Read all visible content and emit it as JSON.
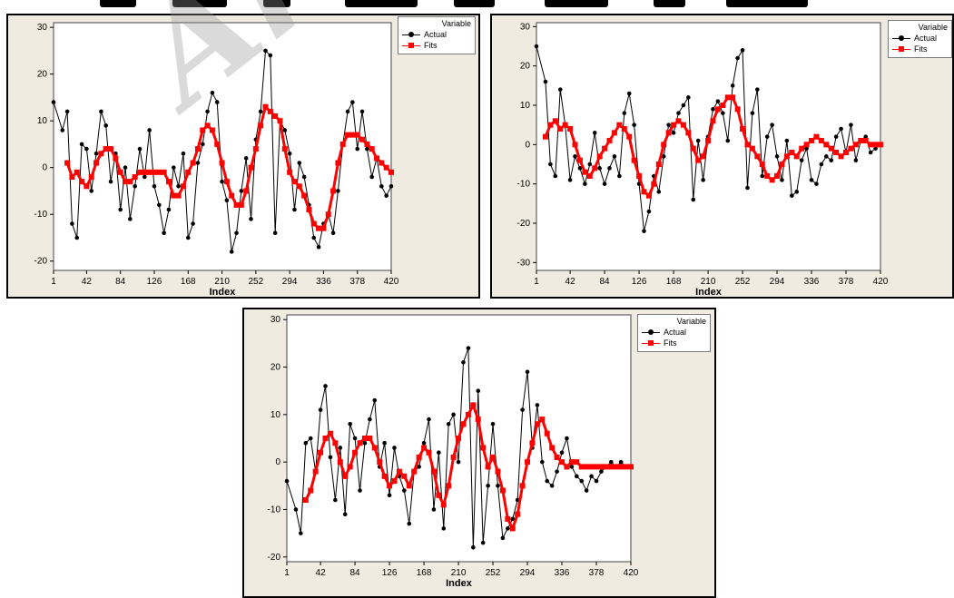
{
  "colors": {
    "actual": "#000000",
    "fits": "#ff0000",
    "panel_bg": "#efebe1"
  },
  "legend": {
    "title": "Variable",
    "actual": "Actual",
    "fits": "Fits"
  },
  "watermark": "Archi",
  "chart_data": [
    {
      "type": "line",
      "xlabel": "Index",
      "xticks": [
        1,
        42,
        84,
        126,
        168,
        210,
        252,
        294,
        336,
        378,
        420
      ],
      "xlim": [
        1,
        420
      ],
      "yticks": [
        -20,
        -10,
        0,
        10,
        20,
        30
      ],
      "ylim": [
        -22,
        31
      ],
      "legend_position": "top-right",
      "series": [
        {
          "name": "Actual",
          "marker": "circle",
          "x": [
            1,
            12,
            18,
            24,
            30,
            36,
            42,
            48,
            54,
            60,
            66,
            72,
            78,
            84,
            90,
            96,
            102,
            108,
            114,
            120,
            126,
            132,
            138,
            144,
            150,
            156,
            162,
            168,
            174,
            180,
            186,
            192,
            198,
            204,
            210,
            216,
            222,
            228,
            234,
            240,
            246,
            252,
            258,
            264,
            270,
            276,
            282,
            288,
            294,
            300,
            306,
            312,
            318,
            324,
            330,
            336,
            342,
            348,
            354,
            360,
            366,
            372,
            378,
            384,
            390,
            396,
            402,
            408,
            414,
            420
          ],
          "y": [
            14,
            8,
            12,
            -12,
            -15,
            5,
            4,
            -5,
            3,
            12,
            9,
            -3,
            3,
            -9,
            0,
            -11,
            -4,
            4,
            -2,
            8,
            -4,
            -8,
            -14,
            -9,
            0,
            -4,
            3,
            -15,
            -12,
            1,
            5,
            12,
            16,
            14,
            -3,
            -7,
            -18,
            -14,
            -5,
            2,
            -11,
            6,
            12,
            25,
            24,
            -14,
            10,
            8,
            3,
            -9,
            1,
            -2,
            -8,
            -15,
            -17,
            -12,
            -10,
            -14,
            -5,
            5,
            12,
            14,
            4,
            12,
            4,
            -2,
            2,
            -4,
            -6,
            -4
          ]
        },
        {
          "name": "Fits",
          "marker": "square",
          "x": [
            18,
            24,
            30,
            36,
            42,
            48,
            54,
            60,
            66,
            72,
            78,
            84,
            90,
            96,
            102,
            108,
            114,
            120,
            126,
            132,
            138,
            144,
            150,
            156,
            162,
            168,
            174,
            180,
            186,
            192,
            198,
            204,
            210,
            216,
            222,
            228,
            234,
            240,
            246,
            252,
            258,
            264,
            270,
            276,
            282,
            288,
            294,
            300,
            306,
            312,
            318,
            324,
            330,
            336,
            342,
            348,
            354,
            360,
            366,
            372,
            378,
            384,
            390,
            396,
            402,
            408,
            414,
            420
          ],
          "y": [
            1,
            -2,
            -1,
            -3,
            -4,
            -2,
            1,
            3,
            4,
            4,
            2,
            -1,
            -3,
            -3,
            -2,
            -1,
            -1,
            -1,
            -1,
            -1,
            -1,
            -3,
            -6,
            -6,
            -4,
            -1,
            1,
            4,
            8,
            9,
            8,
            5,
            1,
            -3,
            -6,
            -8,
            -8,
            -5,
            0,
            4,
            9,
            13,
            12,
            11,
            10,
            4,
            -1,
            -3,
            -4,
            -6,
            -9,
            -12,
            -13,
            -13,
            -10,
            -5,
            1,
            5,
            7,
            7,
            7,
            6,
            5,
            4,
            2,
            1,
            0,
            -1
          ]
        }
      ]
    },
    {
      "type": "line",
      "xlabel": "Index",
      "xticks": [
        1,
        42,
        84,
        126,
        168,
        210,
        252,
        294,
        336,
        378,
        420
      ],
      "xlim": [
        1,
        420
      ],
      "yticks": [
        -30,
        -20,
        -10,
        0,
        10,
        20,
        30
      ],
      "ylim": [
        -32,
        31
      ],
      "legend_position": "top-right",
      "series": [
        {
          "name": "Actual",
          "marker": "circle",
          "x": [
            1,
            12,
            18,
            24,
            30,
            36,
            42,
            48,
            54,
            60,
            66,
            72,
            78,
            84,
            90,
            96,
            102,
            108,
            114,
            120,
            126,
            132,
            138,
            144,
            150,
            156,
            162,
            168,
            174,
            180,
            186,
            192,
            198,
            204,
            210,
            216,
            222,
            228,
            234,
            240,
            246,
            252,
            258,
            264,
            270,
            276,
            282,
            288,
            294,
            300,
            306,
            312,
            318,
            324,
            330,
            336,
            342,
            348,
            354,
            360,
            366,
            372,
            378,
            384,
            390,
            396,
            402,
            408,
            414,
            420
          ],
          "y": [
            25,
            16,
            -5,
            -8,
            14,
            5,
            -9,
            -3,
            -6,
            -10,
            -5,
            3,
            -6,
            -10,
            -6,
            -3,
            -8,
            8,
            13,
            5,
            -10,
            -22,
            -17,
            -8,
            -12,
            -3,
            5,
            3,
            8,
            10,
            12,
            -14,
            1,
            -9,
            2,
            9,
            11,
            8,
            1,
            15,
            22,
            24,
            -11,
            8,
            14,
            -8,
            2,
            5,
            -3,
            -9,
            1,
            -13,
            -12,
            -4,
            -1,
            -9,
            -10,
            -5,
            -3,
            -4,
            2,
            4,
            -2,
            5,
            -4,
            1,
            2,
            -2,
            -1,
            0
          ]
        },
        {
          "name": "Fits",
          "marker": "square",
          "x": [
            12,
            18,
            24,
            30,
            36,
            42,
            48,
            54,
            60,
            66,
            72,
            78,
            84,
            90,
            96,
            102,
            108,
            114,
            120,
            126,
            132,
            138,
            144,
            150,
            156,
            162,
            168,
            174,
            180,
            186,
            192,
            198,
            204,
            210,
            216,
            222,
            228,
            234,
            240,
            246,
            252,
            258,
            264,
            270,
            276,
            282,
            288,
            294,
            300,
            306,
            312,
            318,
            324,
            330,
            336,
            342,
            348,
            354,
            360,
            366,
            372,
            378,
            384,
            390,
            396,
            402,
            408,
            414,
            420
          ],
          "y": [
            2,
            5,
            6,
            4,
            5,
            4,
            0,
            -4,
            -7,
            -8,
            -6,
            -3,
            -1,
            1,
            3,
            5,
            4,
            2,
            -4,
            -8,
            -12,
            -13,
            -10,
            -5,
            0,
            3,
            5,
            6,
            5,
            3,
            -1,
            -4,
            -3,
            1,
            6,
            9,
            10,
            12,
            12,
            9,
            4,
            0,
            -1,
            -3,
            -5,
            -8,
            -9,
            -8,
            -5,
            -3,
            -2,
            -3,
            -1,
            0,
            1,
            2,
            1,
            0,
            -1,
            -2,
            -3,
            -2,
            -1,
            0,
            1,
            1,
            0,
            0,
            0
          ]
        }
      ]
    },
    {
      "type": "line",
      "xlabel": "Index",
      "xticks": [
        1,
        42,
        84,
        126,
        168,
        210,
        252,
        294,
        336,
        378,
        420
      ],
      "xlim": [
        1,
        420
      ],
      "yticks": [
        -20,
        -10,
        0,
        10,
        20,
        30
      ],
      "ylim": [
        -21,
        31
      ],
      "legend_position": "top-right",
      "series": [
        {
          "name": "Actual",
          "marker": "circle",
          "x": [
            1,
            12,
            18,
            24,
            30,
            36,
            42,
            48,
            54,
            60,
            66,
            72,
            78,
            84,
            90,
            96,
            102,
            108,
            114,
            120,
            126,
            132,
            138,
            144,
            150,
            156,
            162,
            168,
            174,
            180,
            186,
            192,
            198,
            204,
            210,
            216,
            222,
            228,
            234,
            240,
            246,
            252,
            258,
            264,
            270,
            276,
            282,
            288,
            294,
            300,
            306,
            312,
            318,
            324,
            330,
            336,
            342,
            348,
            354,
            360,
            366,
            372,
            378,
            384,
            390,
            396,
            402,
            408,
            414,
            420
          ],
          "y": [
            -4,
            -10,
            -15,
            4,
            5,
            -2,
            11,
            16,
            1,
            -8,
            3,
            -11,
            8,
            5,
            -6,
            4,
            9,
            13,
            -1,
            4,
            -7,
            3,
            -3,
            -6,
            -13,
            -2,
            -1,
            4,
            9,
            -10,
            2,
            -14,
            8,
            10,
            0,
            21,
            24,
            -18,
            15,
            -17,
            -5,
            8,
            -5,
            -16,
            -14,
            -12,
            -8,
            11,
            19,
            3,
            12,
            0,
            -4,
            -5,
            -2,
            2,
            5,
            -1,
            -3,
            -4,
            -6,
            -3,
            -4,
            -2,
            -1,
            0,
            -1,
            0,
            -1,
            -1
          ]
        },
        {
          "name": "Fits",
          "marker": "square",
          "x": [
            24,
            30,
            36,
            42,
            48,
            54,
            60,
            66,
            72,
            78,
            84,
            90,
            96,
            102,
            108,
            114,
            120,
            126,
            132,
            138,
            144,
            150,
            156,
            162,
            168,
            174,
            180,
            186,
            192,
            198,
            204,
            210,
            216,
            222,
            228,
            234,
            240,
            246,
            252,
            258,
            264,
            270,
            276,
            282,
            288,
            294,
            300,
            306,
            312,
            318,
            324,
            330,
            336,
            342,
            348,
            354,
            360,
            366,
            372,
            378,
            384,
            390,
            396,
            402,
            408,
            414,
            420
          ],
          "y": [
            -8,
            -6,
            -2,
            2,
            5,
            6,
            4,
            0,
            -3,
            -1,
            2,
            4,
            5,
            5,
            3,
            0,
            -3,
            -5,
            -4,
            -2,
            -3,
            -5,
            -2,
            1,
            3,
            2,
            -2,
            -7,
            -9,
            -5,
            1,
            5,
            8,
            10,
            12,
            9,
            3,
            -1,
            1,
            -2,
            -6,
            -12,
            -14,
            -11,
            -5,
            0,
            4,
            8,
            9,
            6,
            3,
            1,
            0,
            -1,
            0,
            0,
            -1,
            -1,
            -1,
            -1,
            -1,
            -1,
            -1,
            -1,
            -1,
            -1,
            -1
          ]
        }
      ]
    }
  ]
}
